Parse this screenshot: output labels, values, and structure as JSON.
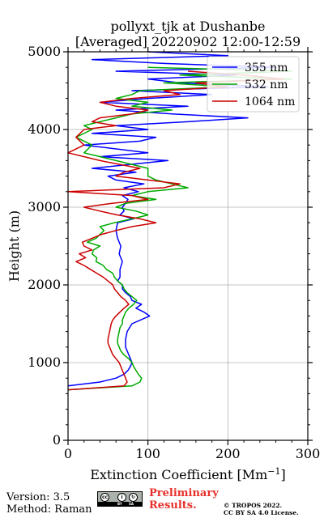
{
  "chart_data": {
    "type": "line",
    "title_line1": "pollyxt_tjk at Dushanbe",
    "title_line2": "[Averaged] 20220902 12:00-12:59",
    "xlabel": "Extinction Coefficient [Mm",
    "xlabel_sup": "−1",
    "xlabel_close": "]",
    "ylabel": "Height (m)",
    "xlim": [
      0,
      300
    ],
    "ylim": [
      0,
      5000
    ],
    "xticks": [
      0,
      100,
      200,
      300
    ],
    "yticks": [
      0,
      1000,
      2000,
      3000,
      4000,
      5000
    ],
    "xtick_labels": [
      "0",
      "100",
      "200",
      "300"
    ],
    "ytick_labels": [
      "0",
      "1000",
      "2000",
      "3000",
      "4000",
      "5000"
    ],
    "grid": true,
    "legend_position": "top-right",
    "series": [
      {
        "name": "355 nm",
        "color": "#0000ff",
        "y": [
          700,
          750,
          800,
          850,
          900,
          950,
          1000,
          1050,
          1100,
          1150,
          1200,
          1300,
          1400,
          1500,
          1600,
          1650,
          1700,
          1750,
          1800,
          1850,
          1900,
          1950,
          2000,
          2050,
          2100,
          2200,
          2300,
          2400,
          2500,
          2600,
          2700,
          2800,
          2850,
          2900,
          2950,
          3000,
          3050,
          3100,
          3150,
          3200,
          3250,
          3300,
          3350,
          3400,
          3450,
          3500,
          3600,
          3650,
          3700,
          3800,
          3850,
          3900,
          3950,
          4000,
          4050,
          4100,
          4150,
          4200,
          4250,
          4300,
          4350,
          4400,
          4450,
          4500,
          4550,
          4600,
          4650,
          4700,
          4750,
          4800,
          4850,
          4900,
          4950,
          5000
        ],
        "x": [
          0,
          40,
          60,
          70,
          75,
          78,
          80,
          78,
          76,
          74,
          72,
          72,
          74,
          80,
          102,
          95,
          85,
          92,
          80,
          78,
          72,
          68,
          68,
          62,
          65,
          65,
          68,
          64,
          66,
          62,
          60,
          62,
          82,
          65,
          70,
          68,
          72,
          75,
          68,
          88,
          70,
          95,
          60,
          50,
          85,
          30,
          125,
          40,
          100,
          20,
          90,
          110,
          30,
          100,
          60,
          150,
          225,
          130,
          60,
          150,
          40,
          100,
          180,
          80,
          250,
          140,
          100,
          210,
          60,
          260,
          120,
          30,
          200,
          100
        ]
      },
      {
        "name": "532 nm",
        "color": "#00aa00",
        "y": [
          650,
          700,
          750,
          800,
          850,
          900,
          950,
          1000,
          1050,
          1100,
          1150,
          1200,
          1250,
          1300,
          1350,
          1400,
          1450,
          1500,
          1550,
          1600,
          1650,
          1700,
          1750,
          1800,
          1850,
          1900,
          1950,
          2000,
          2050,
          2100,
          2150,
          2200,
          2250,
          2300,
          2350,
          2400,
          2450,
          2500,
          2550,
          2600,
          2650,
          2700,
          2750,
          2800,
          2850,
          2900,
          2950,
          3000,
          3050,
          3100,
          3150,
          3200,
          3250,
          3300,
          3350,
          3400,
          3450,
          3500,
          3600,
          3700,
          3800,
          3900,
          4000,
          4050,
          4100,
          4150,
          4200,
          4250,
          4300,
          4350,
          4400,
          4450,
          4500,
          4550,
          4600,
          4650,
          4700,
          4750,
          4800
        ],
        "x": [
          0,
          80,
          90,
          92,
          88,
          85,
          82,
          80,
          76,
          70,
          66,
          64,
          62,
          62,
          63,
          64,
          65,
          68,
          68,
          70,
          72,
          76,
          82,
          86,
          80,
          74,
          70,
          68,
          62,
          58,
          56,
          48,
          44,
          35,
          36,
          30,
          32,
          40,
          24,
          35,
          40,
          45,
          40,
          58,
          80,
          100,
          85,
          60,
          72,
          110,
          80,
          100,
          150,
          130,
          110,
          100,
          100,
          100,
          60,
          20,
          30,
          10,
          30,
          20,
          40,
          60,
          80,
          130,
          80,
          100,
          60,
          80,
          90,
          200,
          120,
          280,
          140,
          280,
          100
        ]
      },
      {
        "name": "1064 nm",
        "color": "#cc0000",
        "y": [
          650,
          700,
          750,
          800,
          850,
          900,
          950,
          1000,
          1050,
          1100,
          1150,
          1200,
          1250,
          1300,
          1350,
          1400,
          1450,
          1500,
          1550,
          1600,
          1650,
          1700,
          1750,
          1800,
          1850,
          1900,
          1950,
          2000,
          2050,
          2100,
          2150,
          2200,
          2250,
          2300,
          2350,
          2400,
          2450,
          2500,
          2550,
          2600,
          2650,
          2700,
          2750,
          2800,
          2850,
          2900,
          2950,
          3000,
          3050,
          3100,
          3150,
          3200,
          3250,
          3300,
          3350,
          3400,
          3450,
          3500,
          3600,
          3700,
          3800,
          3900,
          4000,
          4050,
          4100,
          4150,
          4200,
          4250,
          4300,
          4350,
          4400,
          4450,
          4500,
          4550,
          4600,
          4650,
          4700,
          4750
        ],
        "x": [
          0,
          70,
          74,
          72,
          70,
          68,
          66,
          64,
          60,
          56,
          54,
          52,
          50,
          50,
          51,
          52,
          53,
          54,
          56,
          60,
          65,
          70,
          76,
          72,
          66,
          62,
          58,
          56,
          50,
          44,
          36,
          28,
          20,
          10,
          22,
          14,
          30,
          20,
          18,
          30,
          42,
          60,
          80,
          110,
          90,
          62,
          40,
          20,
          55,
          100,
          80,
          0,
          120,
          140,
          100,
          60,
          70,
          90,
          40,
          0,
          20,
          10,
          20,
          60,
          30,
          40,
          80,
          100,
          60,
          40,
          80,
          140,
          120,
          200,
          160,
          270,
          220,
          150
        ]
      }
    ]
  },
  "footer": {
    "version": "Version: 3.5",
    "method": "Method: Raman",
    "prelim_line1": "Preliminary",
    "prelim_line2": "Results.",
    "copyright_line1": "© TROPOS 2022.",
    "copyright_line2": "CC BY SA 4.0 License."
  },
  "license_badge": {
    "icon_cc": "cc",
    "icon_by": "i",
    "icon_sa": "↻",
    "label_by": "BY",
    "label_sa": "SA"
  }
}
